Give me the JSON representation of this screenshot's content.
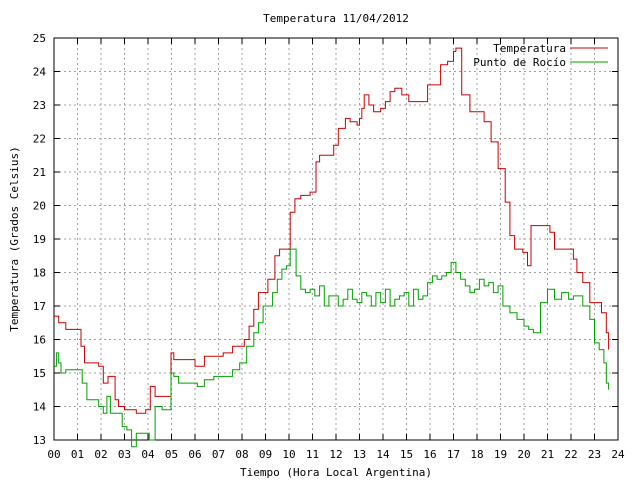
{
  "chart_data": {
    "type": "line",
    "title": "Temperatura 11/04/2012",
    "xlabel": "Tiempo (Hora Local Argentina)",
    "ylabel": "Temperatura (Grados Celsius)",
    "xlim": [
      0,
      24
    ],
    "ylim": [
      13,
      25
    ],
    "x_ticks": [
      "00",
      "01",
      "02",
      "03",
      "04",
      "05",
      "06",
      "07",
      "08",
      "09",
      "10",
      "11",
      "12",
      "13",
      "14",
      "15",
      "16",
      "17",
      "18",
      "19",
      "20",
      "21",
      "22",
      "23",
      "24"
    ],
    "y_ticks": [
      "13",
      "14",
      "15",
      "16",
      "17",
      "18",
      "19",
      "20",
      "21",
      "22",
      "23",
      "24",
      "25"
    ],
    "grid": true,
    "legend": "top-right",
    "series": [
      {
        "name": "Temperatura",
        "color": "#cc0000",
        "x": [
          0.0,
          0.2,
          0.3,
          0.5,
          1.0,
          1.15,
          1.3,
          1.5,
          1.9,
          2.1,
          2.3,
          2.6,
          2.75,
          3.0,
          3.3,
          3.5,
          3.9,
          4.1,
          4.3,
          4.6,
          4.8,
          4.98,
          5.1,
          5.3,
          5.7,
          6.0,
          6.4,
          6.8,
          7.2,
          7.6,
          7.9,
          8.1,
          8.3,
          8.5,
          8.7,
          8.9,
          9.1,
          9.4,
          9.6,
          9.85,
          10.05,
          10.25,
          10.5,
          10.9,
          11.15,
          11.3,
          11.6,
          11.9,
          12.1,
          12.4,
          12.6,
          12.9,
          13.0,
          13.1,
          13.2,
          13.4,
          13.6,
          13.9,
          14.1,
          14.3,
          14.5,
          14.8,
          15.1,
          15.3,
          15.6,
          15.9,
          16.2,
          16.45,
          16.75,
          17.0,
          17.1,
          17.35,
          17.7,
          18.1,
          18.3,
          18.6,
          18.9,
          19.2,
          19.4,
          19.6,
          19.95,
          20.15,
          20.3,
          20.7,
          21.1,
          21.3,
          21.7,
          22.1,
          22.25,
          22.5,
          22.8,
          23.1,
          23.3,
          23.5,
          23.6
        ],
        "values": [
          16.7,
          16.5,
          16.5,
          16.3,
          16.3,
          15.8,
          15.3,
          15.3,
          15.2,
          14.7,
          14.9,
          14.2,
          14.0,
          13.9,
          13.9,
          13.8,
          13.9,
          14.6,
          14.3,
          14.3,
          14.3,
          15.6,
          15.4,
          15.4,
          15.4,
          15.2,
          15.5,
          15.5,
          15.6,
          15.8,
          15.8,
          16.0,
          16.4,
          16.9,
          17.4,
          17.4,
          17.8,
          18.5,
          18.7,
          18.7,
          19.8,
          20.2,
          20.3,
          20.4,
          21.3,
          21.5,
          21.5,
          21.8,
          22.3,
          22.6,
          22.5,
          22.4,
          22.6,
          22.9,
          23.3,
          23.0,
          22.8,
          22.9,
          23.1,
          23.4,
          23.5,
          23.3,
          23.1,
          23.1,
          23.1,
          23.6,
          23.6,
          24.2,
          24.3,
          24.6,
          24.7,
          23.3,
          22.8,
          22.8,
          22.5,
          21.9,
          21.1,
          20.1,
          19.1,
          18.7,
          18.6,
          18.2,
          19.4,
          19.4,
          19.2,
          18.7,
          18.7,
          18.4,
          18.0,
          17.7,
          17.1,
          17.1,
          16.8,
          16.2,
          15.7
        ]
      },
      {
        "name": "Punto de Rocío",
        "color": "#00a000",
        "x": [
          0.0,
          0.1,
          0.2,
          0.3,
          0.5,
          1.0,
          1.2,
          1.4,
          1.7,
          1.9,
          2.1,
          2.25,
          2.4,
          2.7,
          2.9,
          3.1,
          3.3,
          3.5,
          3.9,
          4.05,
          4.3,
          4.6,
          4.8,
          4.98,
          5.1,
          5.3,
          5.8,
          6.1,
          6.4,
          6.8,
          7.2,
          7.6,
          7.9,
          8.2,
          8.5,
          8.7,
          8.9,
          9.1,
          9.3,
          9.5,
          9.7,
          9.9,
          10.05,
          10.3,
          10.5,
          10.7,
          10.9,
          11.1,
          11.3,
          11.5,
          11.7,
          11.9,
          12.1,
          12.3,
          12.5,
          12.7,
          12.9,
          13.1,
          13.3,
          13.5,
          13.7,
          13.9,
          14.1,
          14.3,
          14.5,
          14.7,
          14.9,
          15.1,
          15.3,
          15.5,
          15.7,
          15.9,
          16.1,
          16.3,
          16.5,
          16.7,
          16.9,
          17.1,
          17.3,
          17.5,
          17.7,
          17.9,
          18.1,
          18.3,
          18.5,
          18.7,
          18.9,
          19.1,
          19.4,
          19.7,
          20.0,
          20.2,
          20.4,
          20.7,
          21.0,
          21.3,
          21.6,
          21.9,
          22.1,
          22.3,
          22.5,
          22.8,
          23.0,
          23.2,
          23.4,
          23.5,
          23.6
        ],
        "values": [
          15.2,
          15.6,
          15.3,
          15.0,
          15.1,
          15.1,
          14.7,
          14.2,
          14.2,
          14.0,
          13.8,
          14.3,
          13.8,
          13.8,
          13.4,
          13.3,
          12.8,
          13.2,
          13.2,
          13.0,
          14.0,
          13.9,
          13.9,
          15.0,
          14.9,
          14.7,
          14.7,
          14.6,
          14.8,
          14.9,
          14.9,
          15.1,
          15.3,
          15.8,
          16.2,
          16.5,
          17.0,
          17.0,
          17.4,
          17.8,
          18.1,
          18.2,
          18.7,
          17.9,
          17.5,
          17.4,
          17.5,
          17.3,
          17.6,
          17.0,
          17.3,
          17.3,
          17.0,
          17.2,
          17.5,
          17.2,
          17.1,
          17.4,
          17.3,
          17.0,
          17.4,
          17.1,
          17.5,
          17.0,
          17.2,
          17.3,
          17.4,
          17.0,
          17.5,
          17.2,
          17.3,
          17.7,
          17.9,
          17.8,
          17.9,
          18.0,
          18.3,
          18.0,
          17.8,
          17.6,
          17.4,
          17.5,
          17.8,
          17.6,
          17.7,
          17.4,
          17.6,
          17.0,
          16.8,
          16.6,
          16.4,
          16.3,
          16.2,
          17.1,
          17.5,
          17.2,
          17.4,
          17.2,
          17.3,
          17.3,
          17.0,
          16.6,
          15.9,
          15.7,
          15.3,
          14.7,
          14.5
        ]
      }
    ]
  }
}
